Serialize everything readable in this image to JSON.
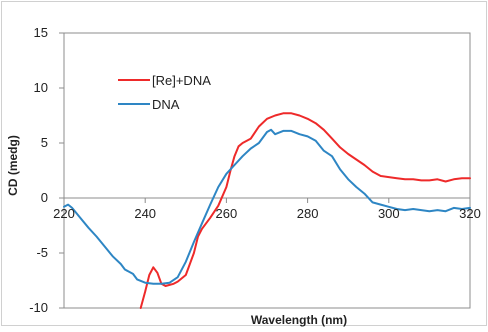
{
  "chart_data": {
    "type": "line",
    "title": "",
    "xlabel": "Wavelength (nm)",
    "ylabel": "CD (medg)",
    "xlim": [
      220,
      320
    ],
    "ylim": [
      -10,
      15
    ],
    "xticks": [
      220,
      240,
      260,
      280,
      300,
      320
    ],
    "yticks": [
      -10,
      -5,
      0,
      5,
      10,
      15
    ],
    "x_tick_labels": [
      "220",
      "240",
      "260",
      "280",
      "300",
      "320"
    ],
    "y_tick_labels": [
      "-10",
      "-5",
      "0",
      "5",
      "10",
      "15"
    ],
    "grid": false,
    "legend": "upper-left inside",
    "series": [
      {
        "name": "[Re]+DNA",
        "color": "#ee2a2a",
        "points": [
          [
            238.9,
            -10
          ],
          [
            240,
            -8.5
          ],
          [
            241,
            -7.0
          ],
          [
            242,
            -6.3
          ],
          [
            243,
            -6.8
          ],
          [
            244,
            -7.8
          ],
          [
            245,
            -8.0
          ],
          [
            246,
            -7.9
          ],
          [
            247,
            -7.8
          ],
          [
            248,
            -7.6
          ],
          [
            250,
            -7.0
          ],
          [
            252,
            -5.0
          ],
          [
            253,
            -3.5
          ],
          [
            254,
            -2.8
          ],
          [
            256,
            -1.8
          ],
          [
            258,
            -0.7
          ],
          [
            260,
            1.0
          ],
          [
            261,
            2.5
          ],
          [
            262,
            3.8
          ],
          [
            263,
            4.7
          ],
          [
            264,
            5.0
          ],
          [
            266,
            5.4
          ],
          [
            268,
            6.5
          ],
          [
            270,
            7.2
          ],
          [
            272,
            7.5
          ],
          [
            274,
            7.7
          ],
          [
            276,
            7.7
          ],
          [
            278,
            7.5
          ],
          [
            280,
            7.2
          ],
          [
            282,
            6.8
          ],
          [
            284,
            6.2
          ],
          [
            286,
            5.4
          ],
          [
            288,
            4.6
          ],
          [
            290,
            4.0
          ],
          [
            292,
            3.5
          ],
          [
            294,
            3.0
          ],
          [
            296,
            2.4
          ],
          [
            298,
            2.0
          ],
          [
            300,
            1.9
          ],
          [
            302,
            1.8
          ],
          [
            304,
            1.7
          ],
          [
            306,
            1.7
          ],
          [
            308,
            1.6
          ],
          [
            310,
            1.6
          ],
          [
            312,
            1.7
          ],
          [
            314,
            1.5
          ],
          [
            316,
            1.7
          ],
          [
            318,
            1.8
          ],
          [
            320,
            1.8
          ]
        ]
      },
      {
        "name": "DNA",
        "color": "#2e86c4",
        "points": [
          [
            220,
            -0.8
          ],
          [
            221,
            -0.6
          ],
          [
            222,
            -0.9
          ],
          [
            224,
            -1.8
          ],
          [
            226,
            -2.7
          ],
          [
            228,
            -3.5
          ],
          [
            230,
            -4.4
          ],
          [
            232,
            -5.3
          ],
          [
            234,
            -6.0
          ],
          [
            235,
            -6.5
          ],
          [
            237,
            -6.9
          ],
          [
            238,
            -7.4
          ],
          [
            240,
            -7.7
          ],
          [
            242,
            -7.8
          ],
          [
            244,
            -7.8
          ],
          [
            246,
            -7.7
          ],
          [
            248,
            -7.2
          ],
          [
            250,
            -5.8
          ],
          [
            252,
            -4.0
          ],
          [
            254,
            -2.3
          ],
          [
            256,
            -0.6
          ],
          [
            258,
            1.0
          ],
          [
            260,
            2.2
          ],
          [
            262,
            3.0
          ],
          [
            264,
            3.8
          ],
          [
            266,
            4.5
          ],
          [
            268,
            5.0
          ],
          [
            270,
            6.0
          ],
          [
            271,
            6.2
          ],
          [
            272,
            5.8
          ],
          [
            274,
            6.1
          ],
          [
            276,
            6.1
          ],
          [
            278,
            5.8
          ],
          [
            280,
            5.6
          ],
          [
            282,
            5.2
          ],
          [
            284,
            4.3
          ],
          [
            286,
            3.8
          ],
          [
            288,
            2.6
          ],
          [
            290,
            1.7
          ],
          [
            292,
            1.0
          ],
          [
            294,
            0.4
          ],
          [
            296,
            -0.4
          ],
          [
            298,
            -0.6
          ],
          [
            300,
            -0.8
          ],
          [
            302,
            -1.0
          ],
          [
            304,
            -1.1
          ],
          [
            306,
            -1.0
          ],
          [
            308,
            -1.1
          ],
          [
            310,
            -1.2
          ],
          [
            312,
            -1.1
          ],
          [
            314,
            -1.2
          ],
          [
            316,
            -0.9
          ],
          [
            318,
            -1.0
          ],
          [
            320,
            -0.9
          ]
        ]
      }
    ]
  }
}
